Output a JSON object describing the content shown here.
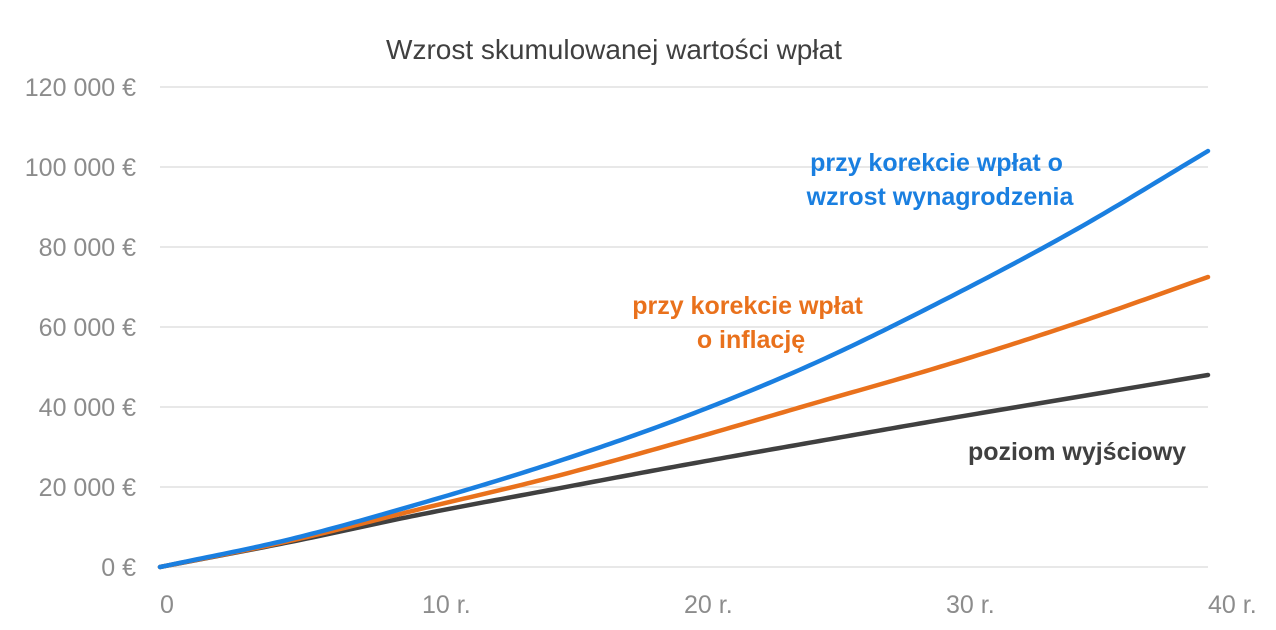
{
  "chart_data": {
    "type": "line",
    "title": "Wzrost skumulowanej wartości wpłat",
    "ylim": [
      0,
      120000
    ],
    "yticks": [
      0,
      20000,
      40000,
      60000,
      80000,
      100000,
      120000
    ],
    "ytick_labels": [
      "0 €",
      "20 000 €",
      "40 000 €",
      "60 000 €",
      "80 000 €",
      "100 000 €",
      "120 000 €"
    ],
    "xlim": [
      0,
      40
    ],
    "xticks": [
      0,
      10,
      20,
      30,
      40
    ],
    "xtick_labels": [
      "0",
      "10 r.",
      "20 r.",
      "30 r.",
      "40 r."
    ],
    "grid": true,
    "x": [
      0,
      5,
      10,
      15,
      20,
      25,
      30,
      35,
      40
    ],
    "series": [
      {
        "name": "przy korekcie wpłat o wzrost wynagrodzenia",
        "color": "#1a7fe0",
        "values": [
          0,
          7000,
          16000,
          26000,
          37500,
          51000,
          67000,
          84500,
          104000
        ]
      },
      {
        "name": "przy korekcie wpłat o inflację",
        "color": "#e9711c",
        "values": [
          0,
          6600,
          14600,
          22500,
          31500,
          41000,
          50500,
          61000,
          72500
        ]
      },
      {
        "name": "poziom wyjściowy",
        "color": "#404040",
        "values": [
          0,
          6300,
          13200,
          19400,
          25500,
          31300,
          37000,
          42500,
          48000
        ]
      }
    ],
    "annotations": [
      {
        "lines": [
          "przy korekcie wpłat o",
          "wzrost wynagrodzenia"
        ],
        "color": "#1a7fe0"
      },
      {
        "lines": [
          "przy korekcie wpłat",
          "o inflację"
        ],
        "color": "#e9711c"
      },
      {
        "lines": [
          "poziom wyjściowy"
        ],
        "color": "#404040"
      }
    ]
  }
}
